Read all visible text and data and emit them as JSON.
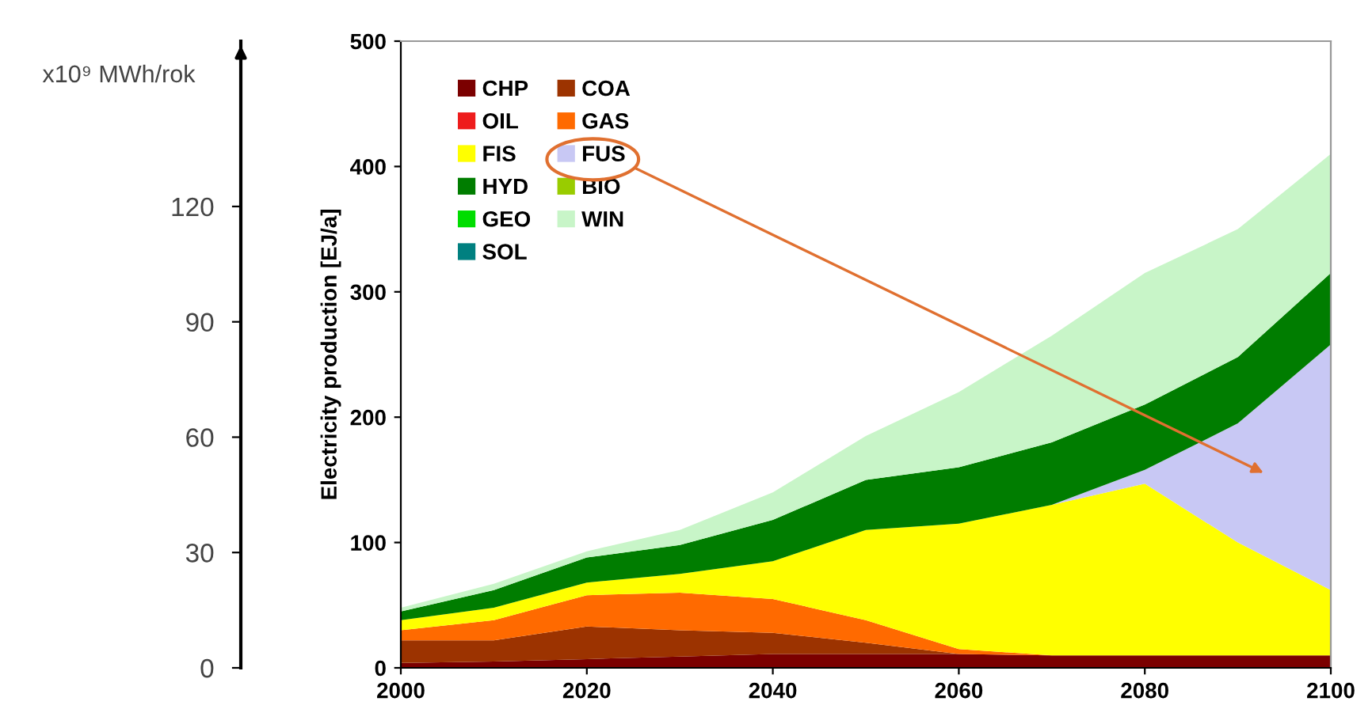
{
  "chart_data": {
    "type": "area",
    "stacked": true,
    "ylabel": "Electricity production [EJ/a]",
    "y2label": "x10⁹ MWh/rok",
    "x": [
      2000,
      2010,
      2020,
      2030,
      2040,
      2050,
      2060,
      2070,
      2080,
      2090,
      2100
    ],
    "xlim": [
      2000,
      2100
    ],
    "xticks": [
      2000,
      2020,
      2040,
      2060,
      2080,
      2100
    ],
    "ylim": [
      0,
      500
    ],
    "yticks": [
      0,
      100,
      200,
      300,
      400,
      500
    ],
    "y2lim": [
      0,
      163
    ],
    "y2ticks": [
      0,
      30,
      60,
      90,
      120
    ],
    "grid": false,
    "legend": "top left",
    "series": [
      {
        "name": "CHP",
        "color": "#7b0000",
        "values": [
          4,
          5,
          7,
          9,
          11,
          11,
          11,
          10,
          10,
          10,
          10
        ]
      },
      {
        "name": "COA",
        "color": "#9c3300",
        "values": [
          18,
          17,
          26,
          21,
          17,
          9,
          0,
          0,
          0,
          0,
          0
        ]
      },
      {
        "name": "OIL",
        "color": "#ee1c1c",
        "values": [
          null,
          null,
          null,
          null,
          null,
          null,
          null,
          null,
          null,
          null,
          null
        ]
      },
      {
        "name": "GAS",
        "color": "#ff6a00",
        "values": [
          8,
          16,
          25,
          30,
          27,
          18,
          4,
          0,
          0,
          0,
          0
        ]
      },
      {
        "name": "FIS",
        "color": "#ffff00",
        "values": [
          8,
          10,
          10,
          15,
          30,
          72,
          100,
          120,
          137,
          90,
          52
        ]
      },
      {
        "name": "FUS",
        "color": "#c8c8f4",
        "values": [
          0,
          0,
          0,
          0,
          0,
          0,
          0,
          0,
          11,
          95,
          196
        ]
      },
      {
        "name": "HYD",
        "color": "#007d00",
        "values": [
          7,
          14,
          20,
          23,
          33,
          40,
          45,
          50,
          52,
          53,
          57
        ]
      },
      {
        "name": "BIO",
        "color": "#99cc00",
        "values": [
          null,
          null,
          null,
          null,
          null,
          null,
          null,
          null,
          null,
          null,
          null
        ]
      },
      {
        "name": "GEO",
        "color": "#00dd00",
        "values": [
          null,
          null,
          null,
          null,
          null,
          null,
          null,
          null,
          null,
          null,
          null
        ]
      },
      {
        "name": "WIN",
        "color": "#c8f5c8",
        "values": [
          3,
          5,
          5,
          12,
          22,
          35,
          60,
          85,
          105,
          102,
          95
        ]
      },
      {
        "name": "SOL",
        "color": "#008080",
        "values": [
          null,
          null,
          null,
          null,
          null,
          null,
          null,
          null,
          null,
          null,
          null
        ]
      }
    ]
  }
}
